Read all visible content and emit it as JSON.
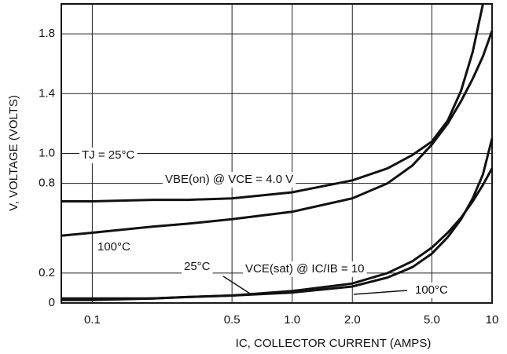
{
  "chart_data": {
    "type": "line",
    "x": [
      0.07,
      0.1,
      0.2,
      0.3,
      0.5,
      1,
      2,
      3,
      4,
      5,
      6,
      7,
      8,
      9,
      10
    ],
    "series": [
      {
        "name": "VBE(on) 25°C",
        "color": "#111111",
        "values": [
          0.68,
          0.68,
          0.69,
          0.69,
          0.7,
          0.74,
          0.82,
          0.9,
          0.99,
          1.08,
          1.22,
          1.42,
          1.68,
          2.0,
          null
        ]
      },
      {
        "name": "VBE(on) 100°C",
        "color": "#111111",
        "values": [
          0.45,
          0.47,
          0.51,
          0.53,
          0.56,
          0.61,
          0.7,
          0.8,
          0.92,
          1.06,
          1.2,
          1.35,
          1.5,
          1.65,
          1.82
        ]
      },
      {
        "name": "VCE(sat) 25°C",
        "color": "#111111",
        "values": [
          0.03,
          0.03,
          0.03,
          0.04,
          0.05,
          0.07,
          0.11,
          0.17,
          0.24,
          0.33,
          0.44,
          0.56,
          0.7,
          0.86,
          1.1
        ]
      },
      {
        "name": "VCE(sat) 100°C",
        "color": "#111111",
        "values": [
          0.02,
          0.02,
          0.03,
          0.04,
          0.05,
          0.08,
          0.13,
          0.2,
          0.28,
          0.37,
          0.47,
          0.57,
          0.68,
          0.79,
          0.9
        ]
      }
    ],
    "xlabel": "IC, COLLECTOR CURRENT (AMPS)",
    "ylabel": "V, VOLTAGE (VOLTS)",
    "annotations": [
      "TJ = 25°C",
      "VBE(on) @ VCE = 4.0 V",
      "100°C",
      "25°C",
      "VCE(sat) @ IC/IB = 10",
      "100°C"
    ],
    "xscale": "log",
    "xlim": [
      0.07,
      10
    ],
    "ylim": [
      0,
      2.0
    ],
    "xticks": [
      0.1,
      0.5,
      {
        "value": 1,
        "label": "1.0"
      },
      {
        "value": 2,
        "label": "2.0"
      },
      {
        "value": 5,
        "label": "5.0"
      },
      10
    ],
    "yticks": [
      0,
      0.2,
      0.8,
      {
        "value": 1,
        "label": "1.0"
      },
      1.4,
      1.8
    ],
    "grid": true
  }
}
